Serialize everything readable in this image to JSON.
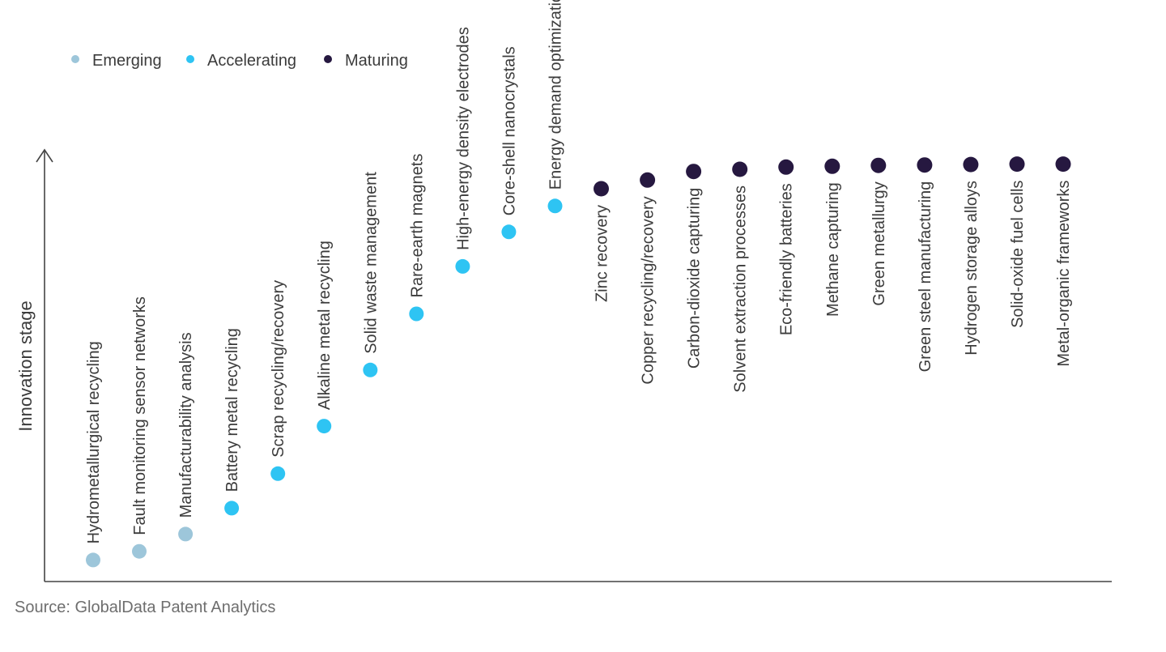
{
  "chart_data": {
    "type": "scatter",
    "ylabel": "Innovation stage",
    "source": "Source: GlobalData Patent Analytics",
    "legend_position": "top-left",
    "stages": [
      {
        "name": "Emerging",
        "color": "#9dc6da"
      },
      {
        "name": "Accelerating",
        "color": "#2ec4f3"
      },
      {
        "name": "Maturing",
        "color": "#261840"
      }
    ],
    "points": [
      {
        "label": "Hydrometallurgical recycling",
        "stage": "Emerging",
        "value": 0.05
      },
      {
        "label": "Fault monitoring sensor networks",
        "stage": "Emerging",
        "value": 0.07
      },
      {
        "label": "Manufacturability analysis",
        "stage": "Emerging",
        "value": 0.11
      },
      {
        "label": "Battery metal recycling",
        "stage": "Accelerating",
        "value": 0.17
      },
      {
        "label": "Scrap recycling/recovery",
        "stage": "Accelerating",
        "value": 0.25
      },
      {
        "label": "Alkaline metal recycling",
        "stage": "Accelerating",
        "value": 0.36
      },
      {
        "label": "Solid waste management",
        "stage": "Accelerating",
        "value": 0.49
      },
      {
        "label": "Rare-earth magnets",
        "stage": "Accelerating",
        "value": 0.62
      },
      {
        "label": "High-energy density electrodes",
        "stage": "Accelerating",
        "value": 0.73
      },
      {
        "label": "Core-shell nanocrystals",
        "stage": "Accelerating",
        "value": 0.81
      },
      {
        "label": "Energy demand optimization",
        "stage": "Accelerating",
        "value": 0.87
      },
      {
        "label": "Zinc recovery",
        "stage": "Maturing",
        "value": 0.91
      },
      {
        "label": "Copper recycling/recovery",
        "stage": "Maturing",
        "value": 0.93
      },
      {
        "label": "Carbon-dioxide capturing",
        "stage": "Maturing",
        "value": 0.95
      },
      {
        "label": "Solvent extraction processes",
        "stage": "Maturing",
        "value": 0.955
      },
      {
        "label": "Eco-friendly batteries",
        "stage": "Maturing",
        "value": 0.96
      },
      {
        "label": "Methane capturing",
        "stage": "Maturing",
        "value": 0.962
      },
      {
        "label": "Green metallurgy",
        "stage": "Maturing",
        "value": 0.964
      },
      {
        "label": "Green steel manufacturing",
        "stage": "Maturing",
        "value": 0.965
      },
      {
        "label": "Hydrogen storage alloys",
        "stage": "Maturing",
        "value": 0.966
      },
      {
        "label": "Solid-oxide fuel cells",
        "stage": "Maturing",
        "value": 0.967
      },
      {
        "label": "Metal-organic frameworks",
        "stage": "Maturing",
        "value": 0.967
      }
    ]
  }
}
